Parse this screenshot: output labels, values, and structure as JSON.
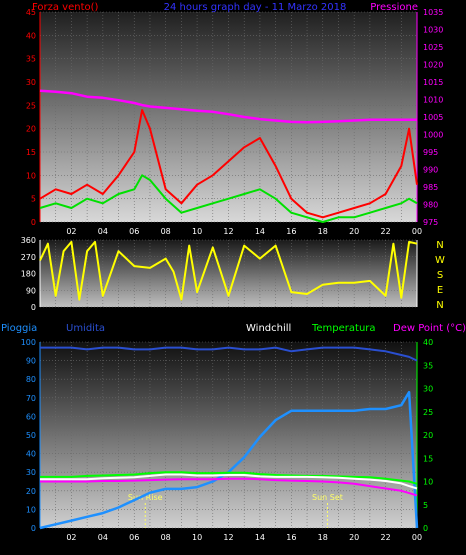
{
  "chart_data": [
    {
      "type": "line",
      "title": "24 hours graph day - 11 Marzo 2018",
      "left_label": "Forza vento()",
      "right_label": "Pressione",
      "x_tick_labels": [
        "02",
        "04",
        "06",
        "08",
        "10",
        "12",
        "14",
        "16",
        "18",
        "20",
        "22",
        "00"
      ],
      "left_axis": {
        "ylim": [
          0,
          45
        ],
        "ticks": [
          "0",
          "5",
          "10",
          "15",
          "20",
          "25",
          "30",
          "35",
          "40",
          "45"
        ]
      },
      "right_axis": {
        "ylim": [
          975,
          1035
        ],
        "ticks": [
          "975",
          "980",
          "985",
          "990",
          "995",
          "1000",
          "1005",
          "1010",
          "1015",
          "1020",
          "1025",
          "1030",
          "1035"
        ]
      },
      "x_hours": [
        0,
        1,
        2,
        3,
        4,
        5,
        6,
        6.5,
        7,
        8,
        9,
        10,
        11,
        12,
        13,
        14,
        15,
        16,
        17,
        18,
        19,
        20,
        21,
        22,
        23,
        23.5,
        24
      ],
      "series": [
        {
          "key": "gust",
          "color": "#ff0000",
          "values": [
            5,
            7,
            6,
            8,
            6,
            10,
            15,
            24,
            20,
            7,
            4,
            8,
            10,
            13,
            16,
            18,
            12,
            5,
            2,
            1,
            2,
            3,
            4,
            6,
            12,
            20,
            8
          ]
        },
        {
          "key": "wind",
          "color": "#00e000",
          "values": [
            3,
            4,
            3,
            5,
            4,
            6,
            7,
            10,
            9,
            5,
            2,
            3,
            4,
            5,
            6,
            7,
            5,
            2,
            1,
            0,
            1,
            1,
            2,
            3,
            4,
            5,
            4
          ]
        },
        {
          "key": "pressure",
          "color": "#ff00ff",
          "values": [
            1012.5,
            1012.2,
            1011.8,
            1010.8,
            1010.5,
            1009.8,
            1009,
            1008.4,
            1008,
            1007.6,
            1007.2,
            1006.8,
            1006.5,
            1005.8,
            1005,
            1004.4,
            1004,
            1003.6,
            1003.5,
            1003.6,
            1003.8,
            1004,
            1004.2,
            1004.2,
            1004.2,
            1004.2,
            1004.2
          ]
        }
      ]
    },
    {
      "type": "line",
      "right_letters": [
        "N",
        "W",
        "S",
        "E",
        "N"
      ],
      "x_tick_labels": [
        "02",
        "04",
        "06",
        "08",
        "10",
        "12",
        "14",
        "16",
        "18",
        "20",
        "22",
        "00"
      ],
      "left_axis": {
        "ylim": [
          0,
          360
        ],
        "ticks": [
          "0",
          "90",
          "180",
          "270",
          "360"
        ]
      },
      "x_hours": [
        0,
        0.5,
        1,
        1.5,
        2,
        2.5,
        3,
        3.5,
        4,
        5,
        6,
        7,
        8,
        8.5,
        9,
        9.5,
        10,
        11,
        12,
        13,
        14,
        15,
        16,
        17,
        18,
        19,
        20,
        21,
        22,
        22.5,
        23,
        23.5,
        24
      ],
      "series": [
        {
          "key": "direction",
          "color": "#ffff00",
          "values": [
            250,
            340,
            60,
            300,
            350,
            40,
            300,
            350,
            60,
            300,
            220,
            210,
            260,
            190,
            40,
            330,
            80,
            320,
            60,
            330,
            260,
            330,
            80,
            70,
            120,
            130,
            130,
            140,
            60,
            340,
            50,
            350,
            340
          ]
        }
      ]
    },
    {
      "type": "line",
      "legend": [
        {
          "key": "rain",
          "text": "Pioggia",
          "color": "#1e90ff"
        },
        {
          "key": "humidity",
          "text": "Umidita",
          "color": "#2a4fd0"
        },
        {
          "key": "windchill",
          "text": "Windchill",
          "color": "#ffffff"
        },
        {
          "key": "temp",
          "text": "Temperatura",
          "color": "#00ff00"
        },
        {
          "key": "dew",
          "text": "Dew Point (°C)",
          "color": "#ff00ff"
        }
      ],
      "x_tick_labels": [
        "02",
        "04",
        "06",
        "08",
        "10",
        "12",
        "14",
        "16",
        "18",
        "20",
        "22",
        "00"
      ],
      "left_axis": {
        "ylim": [
          0,
          100
        ],
        "ticks": [
          "0",
          "10",
          "20",
          "30",
          "40",
          "50",
          "60",
          "70",
          "80",
          "90",
          "100"
        ]
      },
      "right_axis": {
        "ylim": [
          0,
          40
        ],
        "ticks": [
          "0",
          "5",
          "10",
          "15",
          "20",
          "25",
          "30",
          "35",
          "40"
        ]
      },
      "annotations": [
        {
          "text": "Sun Rise",
          "hour": 6.7
        },
        {
          "text": "Sun Set",
          "hour": 18.3
        }
      ],
      "x_hours": [
        0,
        1,
        2,
        3,
        4,
        5,
        6,
        7,
        8,
        9,
        10,
        11,
        12,
        13,
        14,
        15,
        16,
        17,
        18,
        19,
        20,
        21,
        22,
        23,
        23.5,
        24
      ],
      "series": [
        {
          "key": "humidity",
          "axis": "left",
          "color": "#2a4fd0",
          "values": [
            97,
            97,
            97,
            96,
            97,
            97,
            96,
            96,
            97,
            97,
            96,
            96,
            97,
            96,
            96,
            97,
            95,
            96,
            97,
            97,
            97,
            96,
            95,
            93,
            92,
            90
          ]
        },
        {
          "key": "rain",
          "axis": "left",
          "color": "#1e90ff",
          "values": [
            0,
            2,
            4,
            6,
            8,
            11,
            15,
            19,
            21,
            21,
            22,
            25,
            30,
            38,
            49,
            58,
            63,
            63,
            63,
            63,
            63,
            64,
            64,
            66,
            73,
            0
          ]
        },
        {
          "key": "temp",
          "axis": "right",
          "color": "#00ff00",
          "values": [
            11,
            11,
            11,
            11.2,
            11.3,
            11.4,
            11.5,
            11.8,
            12,
            12,
            11.8,
            11.8,
            11.9,
            11.9,
            11.6,
            11.4,
            11.3,
            11.2,
            11.2,
            11.1,
            11,
            10.9,
            10.6,
            10.2,
            10,
            9.5
          ]
        },
        {
          "key": "windchill",
          "axis": "right",
          "color": "#ffffff",
          "values": [
            10.5,
            10.5,
            10.5,
            10.5,
            10.7,
            10.8,
            10.9,
            11.2,
            11.5,
            11.5,
            11.3,
            11.3,
            11.4,
            11.4,
            11.1,
            11,
            11,
            11,
            10.9,
            10.8,
            10.6,
            10.4,
            10.1,
            9.6,
            9,
            8.5
          ]
        },
        {
          "key": "dew",
          "axis": "right",
          "color": "#ff00ff",
          "values": [
            10,
            10,
            10,
            10,
            10.1,
            10.1,
            10.2,
            10.3,
            10.4,
            10.5,
            10.5,
            10.5,
            10.6,
            10.6,
            10.5,
            10.3,
            10.2,
            10.1,
            10,
            9.8,
            9.5,
            9,
            8.5,
            8,
            7.5,
            7
          ]
        }
      ]
    }
  ]
}
